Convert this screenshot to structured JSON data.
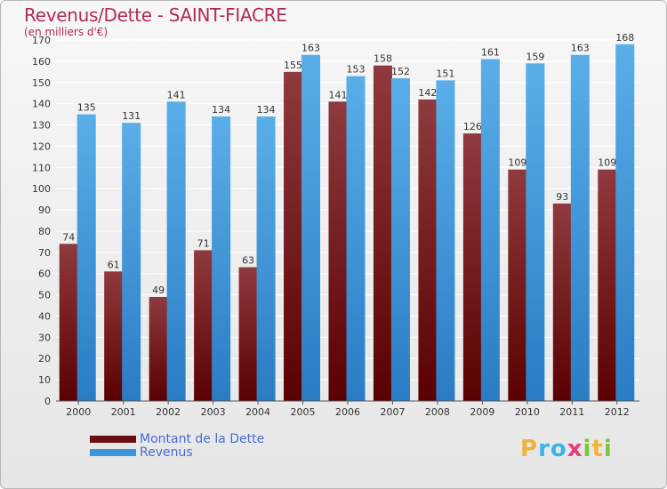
{
  "header": {
    "title": "Revenus/Dette - SAINT-FIACRE",
    "subtitle": "(en milliers d'€)"
  },
  "colors": {
    "dette_top": "#8e3a3e",
    "dette_bottom": "#5a0000",
    "revenus_top": "#5aaee8",
    "revenus_bottom": "#2a7cc4",
    "grid": "#ffffff",
    "axis_text": "#333333",
    "label_text": "#333333"
  },
  "chart_data": {
    "type": "bar",
    "title": "Revenus/Dette - SAINT-FIACRE",
    "ylabel": "(en milliers d'€)",
    "xlabel": "",
    "categories": [
      "2000",
      "2001",
      "2002",
      "2003",
      "2004",
      "2005",
      "2006",
      "2007",
      "2008",
      "2009",
      "2010",
      "2011",
      "2012"
    ],
    "series": [
      {
        "name": "Montant de la Dette",
        "values": [
          74,
          61,
          49,
          71,
          63,
          155,
          141,
          158,
          142,
          126,
          109,
          93,
          109
        ]
      },
      {
        "name": "Revenus",
        "values": [
          135,
          131,
          141,
          134,
          134,
          163,
          153,
          152,
          151,
          161,
          159,
          163,
          168
        ]
      }
    ],
    "ylim": [
      0,
      170
    ],
    "yticks": [
      0,
      10,
      20,
      30,
      40,
      50,
      60,
      70,
      80,
      90,
      100,
      110,
      120,
      130,
      140,
      150,
      160,
      170
    ],
    "grid": true,
    "legend": "bottom-left"
  },
  "legend": {
    "items": [
      {
        "label": "Montant de la Dette",
        "color": "#6b0f12"
      },
      {
        "label": "Revenus",
        "color": "#3c96dc"
      }
    ]
  },
  "logo": {
    "letters": [
      "P",
      "r",
      "o",
      "x",
      "i",
      "t",
      "i"
    ],
    "colors": [
      "#f0b43c",
      "#3cb4e6",
      "#3cb4e6",
      "#e83c78",
      "#78c83c",
      "#f0b43c",
      "#78c83c"
    ]
  }
}
